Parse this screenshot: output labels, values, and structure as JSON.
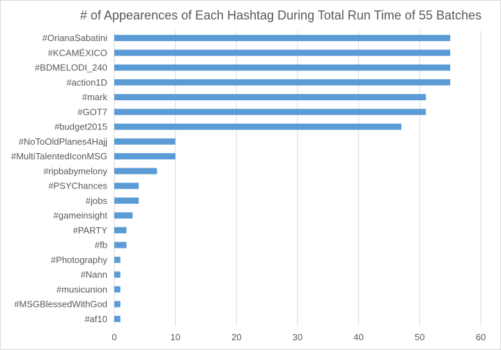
{
  "chart_data": {
    "type": "bar",
    "orientation": "horizontal",
    "title": "# of Appearences of Each Hashtag During Total Run Time of 55 Batches",
    "xlabel": "",
    "ylabel": "",
    "xlim": [
      0,
      60
    ],
    "x_ticks": [
      0,
      10,
      20,
      30,
      40,
      50,
      60
    ],
    "grid": true,
    "bar_color": "#5b9bd5",
    "categories": [
      "#OrianaSabatini",
      "#KCAMÉXICO",
      "#BDMELODI_240",
      "#action1D",
      "#mark",
      "#GOT7",
      "#budget2015",
      "#NoToOldPlanes4Hajj",
      "#MultiTalentedIconMSG",
      "#ripbabymelony",
      "#PSYChances",
      "#jobs",
      "#gameinsight",
      "#PARTY",
      "#fb",
      "#Photography",
      "#Nann",
      "#musicunion",
      "#MSGBlessedWithGod",
      "#af10"
    ],
    "values": [
      55,
      55,
      55,
      55,
      51,
      51,
      47,
      10,
      10,
      7,
      4,
      4,
      3,
      2,
      2,
      1,
      1,
      1,
      1,
      1
    ]
  }
}
